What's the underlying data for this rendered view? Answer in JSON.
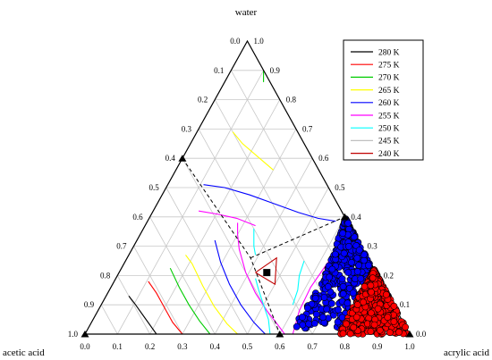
{
  "chart_data": {
    "type": "scatter",
    "subtype": "ternary",
    "title": "",
    "vertex_labels": {
      "top": "water",
      "left": "acetic acid",
      "right": "acrylic acid"
    },
    "axes": {
      "bottom": {
        "component": "acrylic acid",
        "range": [
          0,
          1
        ],
        "ticks": [
          "0.0",
          "0.1",
          "0.2",
          "0.3",
          "0.4",
          "0.5",
          "0.6",
          "0.7",
          "0.8",
          "0.9",
          "1.0"
        ]
      },
      "right": {
        "component": "water",
        "range": [
          0,
          1
        ],
        "ticks": [
          "0.0",
          "0.1",
          "0.2",
          "0.3",
          "0.4",
          "0.5",
          "0.6",
          "0.7",
          "0.8",
          "0.9",
          "1.0"
        ]
      },
      "left": {
        "component": "acetic acid",
        "range": [
          0,
          1
        ],
        "ticks": [
          "0.0",
          "0.1",
          "0.2",
          "0.3",
          "0.4",
          "0.5",
          "0.6",
          "0.7",
          "0.8",
          "0.9",
          "1.0"
        ]
      }
    },
    "grid": true,
    "legend": {
      "position": "top-right",
      "entries": [
        {
          "label": "280 K",
          "color": "#000000"
        },
        {
          "label": "275 K",
          "color": "#ff0000"
        },
        {
          "label": "270 K",
          "color": "#00cc00"
        },
        {
          "label": "265 K",
          "color": "#ffff00"
        },
        {
          "label": "260 K",
          "color": "#0000ff"
        },
        {
          "label": "255 K",
          "color": "#ff00ff"
        },
        {
          "label": "250 K",
          "color": "#00ffff"
        },
        {
          "label": "245 K",
          "color": "#c0c0c0"
        },
        {
          "label": "240 K",
          "color": "#c00000"
        }
      ]
    },
    "isotherms": [
      {
        "label": "280 K",
        "color": "#000000",
        "points": [
          [
            0.22,
            0.0
          ],
          [
            0.18,
            0.035
          ],
          [
            0.14,
            0.07
          ],
          [
            0.1,
            0.105
          ],
          [
            0.07,
            0.13
          ]
        ]
      },
      {
        "label": "275 K",
        "color": "#ff0000",
        "points": [
          [
            0.3,
            0.0
          ],
          [
            0.25,
            0.04
          ],
          [
            0.2,
            0.09
          ],
          [
            0.15,
            0.14
          ],
          [
            0.105,
            0.18
          ]
        ]
      },
      {
        "label": "270 K",
        "color": "#00cc00",
        "points": [
          [
            0.385,
            0.0
          ],
          [
            0.33,
            0.045
          ],
          [
            0.27,
            0.1
          ],
          [
            0.21,
            0.16
          ],
          [
            0.15,
            0.225
          ]
        ]
      },
      {
        "label": "270 K",
        "color": "#00cc00",
        "points": [
          [
            0.1,
            0.9
          ],
          [
            0.12,
            0.86
          ]
        ]
      },
      {
        "label": "265 K",
        "color": "#ffff00",
        "points": [
          [
            0.47,
            0.0
          ],
          [
            0.42,
            0.035
          ],
          [
            0.35,
            0.095
          ],
          [
            0.28,
            0.165
          ],
          [
            0.21,
            0.24
          ],
          [
            0.175,
            0.27
          ]
        ]
      },
      {
        "label": "265 K",
        "color": "#ffff00",
        "points": [
          [
            0.11,
            0.69
          ],
          [
            0.16,
            0.65
          ],
          [
            0.23,
            0.605
          ],
          [
            0.3,
            0.56
          ]
        ]
      },
      {
        "label": "260 K",
        "color": "#0000ff",
        "points": [
          [
            0.555,
            0.0
          ],
          [
            0.5,
            0.04
          ],
          [
            0.43,
            0.1
          ],
          [
            0.36,
            0.17
          ],
          [
            0.295,
            0.245
          ],
          [
            0.24,
            0.32
          ]
        ]
      },
      {
        "label": "260 K",
        "color": "#0000ff",
        "points": [
          [
            0.11,
            0.51
          ],
          [
            0.18,
            0.5
          ],
          [
            0.27,
            0.475
          ],
          [
            0.36,
            0.445
          ],
          [
            0.45,
            0.415
          ],
          [
            0.52,
            0.395
          ],
          [
            0.58,
            0.385
          ]
        ]
      },
      {
        "label": "255 K",
        "color": "#ff00ff",
        "points": [
          [
            0.615,
            0.0
          ],
          [
            0.58,
            0.03
          ],
          [
            0.52,
            0.08
          ],
          [
            0.455,
            0.14
          ],
          [
            0.39,
            0.21
          ],
          [
            0.33,
            0.29
          ],
          [
            0.3,
            0.34
          ],
          [
            0.28,
            0.38
          ]
        ]
      },
      {
        "label": "255 K",
        "color": "#ff00ff",
        "points": [
          [
            0.14,
            0.42
          ],
          [
            0.2,
            0.41
          ],
          [
            0.27,
            0.395
          ],
          [
            0.34,
            0.37
          ]
        ]
      },
      {
        "label": "255 K",
        "color": "#ff00ff",
        "points": [
          [
            0.64,
            0.0
          ],
          [
            0.62,
            0.08
          ],
          [
            0.615,
            0.16
          ],
          [
            0.625,
            0.24
          ],
          [
            0.64,
            0.3
          ],
          [
            0.655,
            0.34
          ]
        ]
      },
      {
        "label": "250 K",
        "color": "#00ffff",
        "points": [
          [
            0.57,
            0.0
          ],
          [
            0.54,
            0.05
          ],
          [
            0.5,
            0.1
          ],
          [
            0.46,
            0.15
          ],
          [
            0.43,
            0.19
          ]
        ]
      },
      {
        "label": "250 K",
        "color": "#00ffff",
        "points": [
          [
            0.34,
            0.36
          ],
          [
            0.37,
            0.3
          ],
          [
            0.39,
            0.27
          ]
        ]
      },
      {
        "label": "250 K",
        "color": "#00ffff",
        "points": [
          [
            0.55,
            0.25
          ],
          [
            0.56,
            0.2
          ],
          [
            0.58,
            0.15
          ],
          [
            0.59,
            0.1
          ]
        ]
      },
      {
        "label": "240 K",
        "color": "#c00000",
        "points": [
          [
            0.42,
            0.21
          ],
          [
            0.5,
            0.17
          ],
          [
            0.46,
            0.26
          ],
          [
            0.42,
            0.21
          ]
        ]
      }
    ],
    "phase_boundaries": [
      {
        "style": "dashed",
        "points": [
          [
            0.0,
            0.6
          ],
          [
            0.38,
            0.26
          ],
          [
            0.6,
            0.0
          ]
        ]
      },
      {
        "style": "dashed",
        "points": [
          [
            0.38,
            0.26
          ],
          [
            0.6,
            0.4
          ]
        ]
      }
    ],
    "triangle_markers": [
      [
        0.0,
        0.6
      ],
      [
        0.6,
        0.4
      ],
      [
        0.6,
        0.0
      ],
      [
        1.0,
        0.0
      ],
      [
        0.0,
        0.0
      ]
    ],
    "square_markers": [
      [
        0.455,
        0.21
      ]
    ],
    "scatter_series": [
      {
        "label": "",
        "color": "#0000ff",
        "region": {
          "acrylic_min": 0.62,
          "water_range": [
            0.02,
            0.4
          ]
        },
        "count": 550
      },
      {
        "label": "",
        "color": "#ff0000",
        "region": {
          "acrylic_min": 0.78,
          "water_range": [
            0.0,
            0.25
          ]
        },
        "count": 650
      }
    ]
  }
}
